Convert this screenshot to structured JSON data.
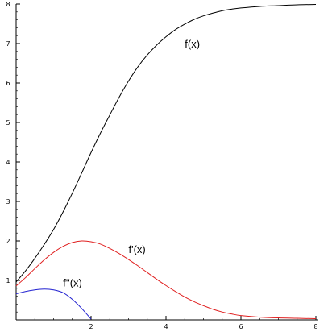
{
  "chart_data": {
    "type": "line",
    "xlim": [
      0,
      8
    ],
    "ylim": [
      0,
      8
    ],
    "x_ticks": [
      2,
      4,
      6,
      8
    ],
    "y_ticks": [
      1,
      2,
      3,
      4,
      5,
      6,
      7,
      8
    ],
    "grid": false,
    "colors": {
      "axis": "#000000",
      "f": "#000000",
      "f_prime": "#e02020",
      "f_double_prime": "#2020d0"
    },
    "series": [
      {
        "name": "f(x)",
        "color": "#000000",
        "label_at": [
          4.5,
          7.0
        ],
        "x": [
          0,
          0.25,
          0.5,
          0.75,
          1.0,
          1.25,
          1.5,
          1.75,
          2.0,
          2.25,
          2.5,
          2.75,
          3.0,
          3.25,
          3.5,
          3.75,
          4.0,
          4.25,
          4.5,
          4.75,
          5.0,
          5.25,
          5.5,
          5.75,
          6.0,
          6.5,
          7.0,
          7.5,
          8.0
        ],
        "y": [
          0.96,
          1.24,
          1.56,
          1.91,
          2.29,
          2.73,
          3.21,
          3.72,
          4.24,
          4.73,
          5.19,
          5.64,
          6.05,
          6.41,
          6.71,
          6.96,
          7.17,
          7.35,
          7.49,
          7.61,
          7.7,
          7.77,
          7.83,
          7.87,
          7.9,
          7.94,
          7.96,
          7.98,
          7.99
        ]
      },
      {
        "name": "f'(x)",
        "color": "#e02020",
        "label_at": [
          3.0,
          1.8
        ],
        "x": [
          0,
          0.25,
          0.5,
          0.75,
          1.0,
          1.25,
          1.5,
          1.75,
          2.0,
          2.25,
          2.5,
          2.75,
          3.0,
          3.25,
          3.5,
          3.75,
          4.0,
          4.25,
          4.5,
          4.75,
          5.0,
          5.25,
          5.5,
          5.75,
          6.0,
          6.5,
          7.0,
          7.5,
          8.0
        ],
        "y": [
          0.86,
          1.07,
          1.3,
          1.52,
          1.71,
          1.86,
          1.96,
          2.0,
          1.98,
          1.92,
          1.81,
          1.68,
          1.53,
          1.37,
          1.2,
          1.03,
          0.87,
          0.72,
          0.58,
          0.46,
          0.36,
          0.27,
          0.2,
          0.15,
          0.11,
          0.07,
          0.05,
          0.04,
          0.03
        ]
      },
      {
        "name": "f''(x)",
        "color": "#2020d0",
        "label_at": [
          1.25,
          0.95
        ],
        "x": [
          0,
          0.25,
          0.5,
          0.75,
          1.0,
          1.25,
          1.5,
          1.75,
          2.0
        ],
        "y": [
          0.66,
          0.72,
          0.76,
          0.78,
          0.76,
          0.69,
          0.52,
          0.29,
          0.02
        ]
      }
    ]
  }
}
